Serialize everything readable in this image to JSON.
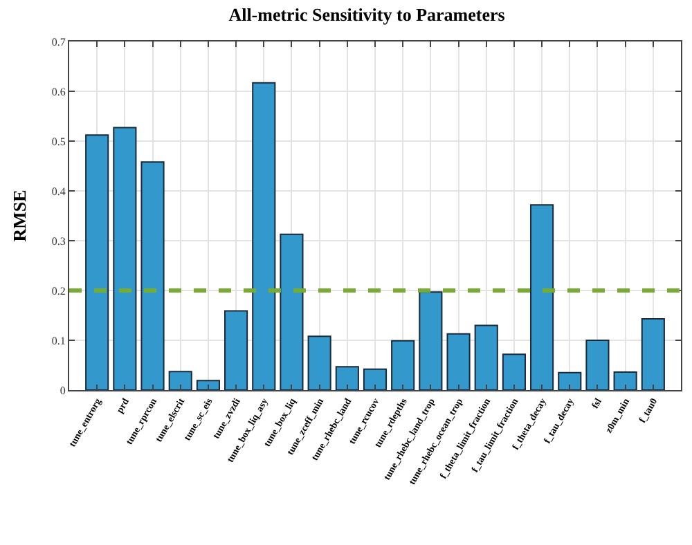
{
  "chart_data": {
    "type": "bar",
    "title": "All-metric Sensitivity to Parameters",
    "ylabel": "RMSE",
    "categories": [
      "tune_entrorg",
      "prd",
      "tune_rprcon",
      "tune_elscrit",
      "tune_sc_eis",
      "tune_zvzdi",
      "tune_box_liq_asy",
      "tune_box_liq",
      "tune_zceff_min",
      "tune_rhebc_land",
      "tune_rcucov",
      "tune_rdepths",
      "tune_rhebc_land_trop",
      "tune_rhebc_ocean_trop",
      "f_theta_limit_fraction",
      "f_tau_limit_fraction",
      "f_theta_decay",
      "f_tau_decay",
      "fsl",
      "z0m_min",
      "f_tau0"
    ],
    "values": [
      0.512,
      0.527,
      0.458,
      0.037,
      0.019,
      0.159,
      0.617,
      0.313,
      0.108,
      0.047,
      0.042,
      0.099,
      0.197,
      0.113,
      0.13,
      0.072,
      0.372,
      0.035,
      0.1,
      0.036,
      0.143
    ],
    "color": "#3399cc",
    "ylim": [
      0,
      0.7
    ],
    "yticks": [
      0,
      0.1,
      0.2,
      0.3,
      0.4,
      0.5,
      0.6,
      0.7
    ],
    "ref_lines": [
      {
        "axis": "y",
        "value": 0.2,
        "color": "#77ac30",
        "line_style": "dashed"
      }
    ],
    "grid": true
  }
}
